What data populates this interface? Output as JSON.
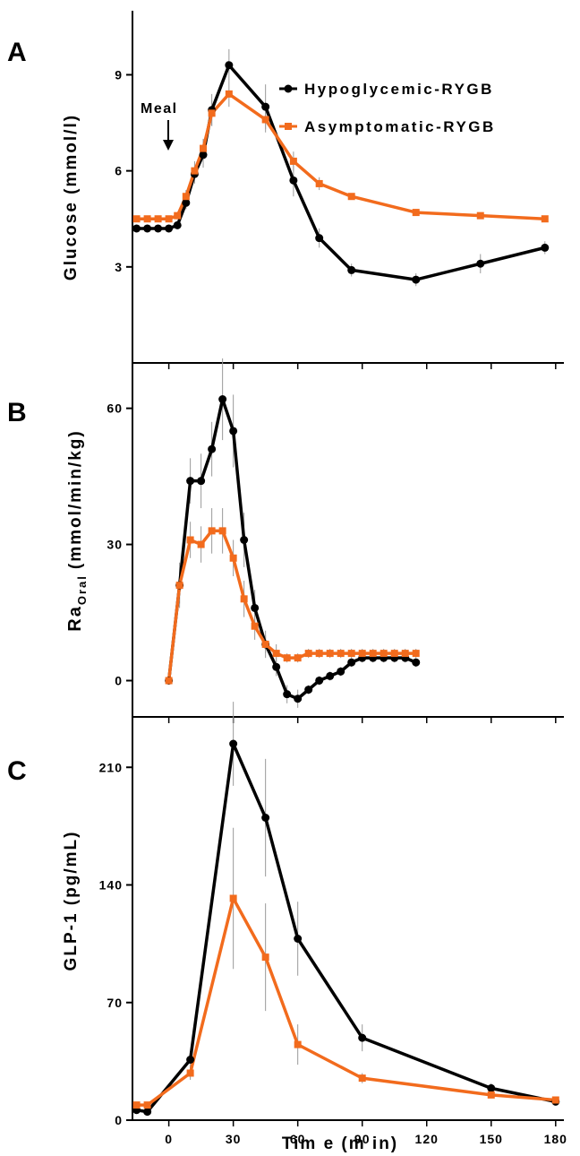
{
  "colors": {
    "hypo": "#000000",
    "asym": "#f26b1d",
    "axis": "#000000",
    "errorbar": "#999999"
  },
  "legend": [
    {
      "label": "Hypoglycemic-RYGB",
      "color": "#000000",
      "icon": "circle-marker"
    },
    {
      "label": "Asymptomatic-RYGB",
      "color": "#f26b1d",
      "icon": "square-marker"
    }
  ],
  "annotation": {
    "meal": "Meal",
    "meal_time": 2
  },
  "x_axis": {
    "label": "Tim e (m in)",
    "ticks": [
      "0",
      "30",
      "60",
      "90",
      "120",
      "150",
      "180"
    ]
  },
  "chart_data": [
    {
      "type": "line",
      "panel": "A",
      "ylabel": "Glucose (mmol/l)",
      "ylim": [
        0,
        11
      ],
      "xlim": [
        -14,
        183
      ],
      "yticks": [
        3,
        6,
        9
      ],
      "yticklabels": [
        "3",
        "6",
        "9"
      ],
      "legend_position": "top-right",
      "series": [
        {
          "name": "Hypoglycemic-RYGB",
          "marker": "circle",
          "x": [
            -15,
            -10,
            -5,
            0,
            4,
            8,
            12,
            16,
            20,
            28,
            45,
            58,
            70,
            85,
            115,
            145,
            175
          ],
          "y": [
            4.2,
            4.2,
            4.2,
            4.2,
            4.3,
            5.0,
            5.9,
            6.5,
            7.9,
            9.3,
            8.0,
            5.7,
            3.9,
            2.9,
            2.6,
            3.1,
            3.6
          ],
          "err": [
            0.1,
            0.1,
            0.1,
            0.1,
            0.1,
            0.2,
            0.3,
            0.4,
            0.5,
            0.5,
            0.7,
            0.5,
            0.3,
            0.2,
            0.2,
            0.3,
            0.2
          ]
        },
        {
          "name": "Asymptomatic-RYGB",
          "marker": "square",
          "x": [
            -15,
            -10,
            -5,
            0,
            4,
            8,
            12,
            16,
            20,
            28,
            45,
            58,
            70,
            85,
            115,
            145,
            175
          ],
          "y": [
            4.5,
            4.5,
            4.5,
            4.5,
            4.6,
            5.2,
            6.0,
            6.7,
            7.8,
            8.4,
            7.6,
            6.3,
            5.6,
            5.2,
            4.7,
            4.6,
            4.5
          ],
          "err": [
            0.1,
            0.1,
            0.1,
            0.1,
            0.1,
            0.2,
            0.3,
            0.3,
            0.4,
            0.4,
            0.4,
            0.3,
            0.2,
            0.1,
            0.1,
            0.1,
            0.1
          ]
        }
      ]
    },
    {
      "type": "line",
      "panel": "B",
      "ylabel": "Ra",
      "ylabel_subscript": "Oral",
      "ylabel_rest": "(mmol/min/kg)",
      "ylim": [
        -8,
        70
      ],
      "xlim": [
        -14,
        183
      ],
      "yticks": [
        0,
        30,
        60
      ],
      "yticklabels": [
        "0",
        "30",
        "60"
      ],
      "series": [
        {
          "name": "Hypoglycemic-RYGB",
          "marker": "circle",
          "x": [
            0,
            5,
            10,
            15,
            20,
            25,
            30,
            35,
            40,
            45,
            50,
            55,
            60,
            65,
            70,
            75,
            80,
            85,
            90,
            95,
            100,
            105,
            110,
            115
          ],
          "y": [
            0,
            21,
            44,
            44,
            51,
            62,
            55,
            31,
            16,
            8,
            3,
            -3,
            -4,
            -2,
            0,
            1,
            2,
            4,
            5,
            5,
            5,
            5,
            5,
            4
          ],
          "err": [
            0,
            5,
            5,
            6,
            6,
            9,
            8,
            6,
            4,
            3,
            2,
            2,
            2,
            1,
            1,
            1,
            1,
            1,
            1,
            1,
            1,
            1,
            1,
            1
          ]
        },
        {
          "name": "Asymptomatic-RYGB",
          "marker": "square",
          "x": [
            0,
            5,
            10,
            15,
            20,
            25,
            30,
            35,
            40,
            45,
            50,
            55,
            60,
            65,
            70,
            75,
            80,
            85,
            90,
            95,
            100,
            105,
            110,
            115
          ],
          "y": [
            0,
            21,
            31,
            30,
            33,
            33,
            27,
            18,
            12,
            8,
            6,
            5,
            5,
            6,
            6,
            6,
            6,
            6,
            6,
            6,
            6,
            6,
            6,
            6
          ],
          "err": [
            0,
            4,
            4,
            4,
            5,
            5,
            4,
            4,
            3,
            2,
            2,
            1,
            1,
            1,
            1,
            1,
            1,
            1,
            1,
            1,
            1,
            1,
            1,
            1
          ]
        }
      ]
    },
    {
      "type": "line",
      "panel": "C",
      "ylabel": "GLP-1 (pg/mL)",
      "ylim": [
        0,
        240
      ],
      "xlim": [
        -14,
        183
      ],
      "yticks": [
        0,
        70,
        140,
        210
      ],
      "yticklabels": [
        "0",
        "70",
        "140",
        "210"
      ],
      "series": [
        {
          "name": "Hypoglycemic-RYGB",
          "marker": "circle",
          "x": [
            -15,
            -10,
            10,
            30,
            45,
            60,
            90,
            150,
            180
          ],
          "y": [
            6,
            5,
            36,
            224,
            180,
            108,
            49,
            19,
            11
          ],
          "err": [
            1,
            1,
            5,
            25,
            35,
            22,
            8,
            3,
            2
          ]
        },
        {
          "name": "Asymptomatic-RYGB",
          "marker": "square",
          "x": [
            -15,
            -10,
            10,
            30,
            45,
            60,
            90,
            150,
            180
          ],
          "y": [
            9,
            9,
            28,
            132,
            97,
            45,
            25,
            15,
            12
          ],
          "err": [
            1,
            1,
            4,
            42,
            32,
            12,
            3,
            2,
            2
          ]
        }
      ]
    }
  ]
}
